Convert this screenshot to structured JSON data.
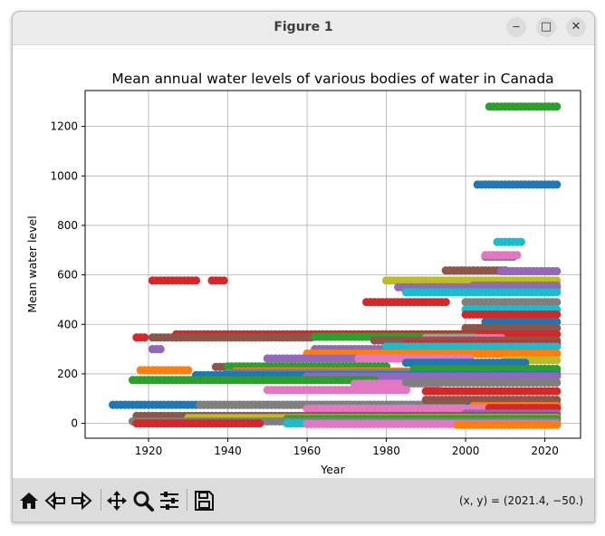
{
  "window": {
    "title": "Figure 1",
    "minimize_label": "‒",
    "maximize_label": "□",
    "close_label": "✕"
  },
  "toolbar": {
    "icons": [
      "home-icon",
      "back-icon",
      "forward-icon",
      "pan-icon",
      "zoom-icon",
      "configure-subplots-icon",
      "save-icon"
    ],
    "coords_text": "(x, y) = (2021.4, −50.)"
  },
  "chart_data": {
    "type": "scatter",
    "title": "Mean annual water levels of various bodies of water in Canada",
    "xlabel": "Year",
    "ylabel": "Mean water level",
    "xlim": [
      1904,
      2029
    ],
    "ylim": [
      -60,
      1345
    ],
    "xticks": [
      1920,
      1940,
      1960,
      1980,
      2000,
      2020
    ],
    "yticks": [
      0,
      200,
      400,
      600,
      800,
      1000,
      1200
    ],
    "grid": true,
    "legend": "none",
    "colors": [
      "#1f77b4",
      "#ff7f0e",
      "#2ca02c",
      "#d62728",
      "#9467bd",
      "#8c564b",
      "#e377c2",
      "#7f7f7f",
      "#bcbd22",
      "#17becf"
    ],
    "series": [
      {
        "color": "#2ca02c",
        "x": [
          2006,
          2023
        ],
        "y": [
          1280,
          1280
        ]
      },
      {
        "color": "#1f77b4",
        "x": [
          2003,
          2023
        ],
        "y": [
          965,
          965
        ]
      },
      {
        "color": "#17becf",
        "x": [
          2008,
          2014
        ],
        "y": [
          733,
          733
        ]
      },
      {
        "color": "#7f7f7f",
        "x": [
          2005,
          2012
        ],
        "y": [
          673,
          673
        ]
      },
      {
        "color": "#e377c2",
        "x": [
          2005,
          2013
        ],
        "y": [
          680,
          680
        ]
      },
      {
        "color": "#8c564b",
        "x": [
          1995,
          2010
        ],
        "y": [
          618,
          618
        ]
      },
      {
        "color": "#9467bd",
        "x": [
          2009,
          2023
        ],
        "y": [
          615,
          615
        ]
      },
      {
        "color": "#d62728",
        "x": [
          1921,
          1932
        ],
        "y": [
          577,
          577
        ]
      },
      {
        "color": "#d62728",
        "x": [
          1936,
          1939
        ],
        "y": [
          577,
          577
        ]
      },
      {
        "color": "#bcbd22",
        "x": [
          1980,
          2023
        ],
        "y": [
          577,
          577
        ]
      },
      {
        "color": "#7f7f7f",
        "x": [
          2002,
          2023
        ],
        "y": [
          557,
          557
        ]
      },
      {
        "color": "#9467bd",
        "x": [
          1983,
          2023
        ],
        "y": [
          550,
          550
        ]
      },
      {
        "color": "#17becf",
        "x": [
          1985,
          2023
        ],
        "y": [
          530,
          530
        ]
      },
      {
        "color": "#d62728",
        "x": [
          1975,
          1995
        ],
        "y": [
          490,
          490
        ]
      },
      {
        "color": "#7f7f7f",
        "x": [
          2000,
          2023
        ],
        "y": [
          490,
          490
        ]
      },
      {
        "color": "#17becf",
        "x": [
          2000,
          2023
        ],
        "y": [
          460,
          460
        ]
      },
      {
        "color": "#d62728",
        "x": [
          2000,
          2023
        ],
        "y": [
          440,
          440
        ]
      },
      {
        "color": "#1f77b4",
        "x": [
          2005,
          2023
        ],
        "y": [
          410,
          410
        ]
      },
      {
        "color": "#8c564b",
        "x": [
          2000,
          2023
        ],
        "y": [
          385,
          385
        ]
      },
      {
        "color": "#d62728",
        "x": [
          1917,
          1919
        ],
        "y": [
          347,
          347
        ]
      },
      {
        "color": "#8c564b",
        "x": [
          1921,
          1927
        ],
        "y": [
          347,
          347
        ]
      },
      {
        "color": "#d62728",
        "x": [
          1927,
          2023
        ],
        "y": [
          360,
          360
        ]
      },
      {
        "color": "#8c564b",
        "x": [
          1927,
          1961
        ],
        "y": [
          347,
          347
        ]
      },
      {
        "color": "#2ca02c",
        "x": [
          1962,
          2002
        ],
        "y": [
          350,
          350
        ]
      },
      {
        "color": "#e377c2",
        "x": [
          1990,
          2009
        ],
        "y": [
          345,
          345
        ]
      },
      {
        "color": "#8c564b",
        "x": [
          1977,
          2023
        ],
        "y": [
          335,
          335
        ]
      },
      {
        "color": "#9467bd",
        "x": [
          1921,
          1923
        ],
        "y": [
          300,
          300
        ]
      },
      {
        "color": "#9467bd",
        "x": [
          1962,
          2010
        ],
        "y": [
          300,
          300
        ]
      },
      {
        "color": "#d62728",
        "x": [
          1985,
          2023
        ],
        "y": [
          320,
          320
        ]
      },
      {
        "color": "#17becf",
        "x": [
          1980,
          2023
        ],
        "y": [
          310,
          310
        ]
      },
      {
        "color": "#d62728",
        "x": [
          2003,
          2023
        ],
        "y": [
          282,
          282
        ]
      },
      {
        "color": "#ff7f0e",
        "x": [
          1960,
          2023
        ],
        "y": [
          282,
          282
        ]
      },
      {
        "color": "#9467bd",
        "x": [
          1950,
          1975
        ],
        "y": [
          262,
          262
        ]
      },
      {
        "color": "#e377c2",
        "x": [
          1973,
          2001
        ],
        "y": [
          262,
          262
        ]
      },
      {
        "color": "#bcbd22",
        "x": [
          2010,
          2023
        ],
        "y": [
          255,
          255
        ]
      },
      {
        "color": "#1f77b4",
        "x": [
          1985,
          2015
        ],
        "y": [
          245,
          245
        ]
      },
      {
        "color": "#8c564b",
        "x": [
          1937,
          1955
        ],
        "y": [
          228,
          228
        ]
      },
      {
        "color": "#2ca02c",
        "x": [
          1940,
          1980
        ],
        "y": [
          230,
          230
        ]
      },
      {
        "color": "#ff7f0e",
        "x": [
          1918,
          1930
        ],
        "y": [
          215,
          215
        ]
      },
      {
        "color": "#ff7f0e",
        "x": [
          1942,
          1992
        ],
        "y": [
          210,
          210
        ]
      },
      {
        "color": "#7f7f7f",
        "x": [
          1940,
          2023
        ],
        "y": [
          205,
          205
        ]
      },
      {
        "color": "#2ca02c",
        "x": [
          1987,
          2023
        ],
        "y": [
          220,
          220
        ]
      },
      {
        "color": "#1f77b4",
        "x": [
          1932,
          2023
        ],
        "y": [
          195,
          195
        ]
      },
      {
        "color": "#9467bd",
        "x": [
          1960,
          2023
        ],
        "y": [
          190,
          190
        ]
      },
      {
        "color": "#2ca02c",
        "x": [
          1916,
          1977
        ],
        "y": [
          175,
          175
        ]
      },
      {
        "color": "#e377c2",
        "x": [
          1972,
          1993
        ],
        "y": [
          160,
          160
        ]
      },
      {
        "color": "#7f7f7f",
        "x": [
          1985,
          2023
        ],
        "y": [
          165,
          165
        ]
      },
      {
        "color": "#e377c2",
        "x": [
          1950,
          1985
        ],
        "y": [
          135,
          135
        ]
      },
      {
        "color": "#d62728",
        "x": [
          1990,
          2023
        ],
        "y": [
          130,
          130
        ]
      },
      {
        "color": "#1f77b4",
        "x": [
          1911,
          2023
        ],
        "y": [
          75,
          75
        ]
      },
      {
        "color": "#9467bd",
        "x": [
          1962,
          1973
        ],
        "y": [
          75,
          75
        ]
      },
      {
        "color": "#7f7f7f",
        "x": [
          1933,
          1999
        ],
        "y": [
          75,
          75
        ]
      },
      {
        "color": "#8c564b",
        "x": [
          1990,
          2023
        ],
        "y": [
          95,
          95
        ]
      },
      {
        "color": "#ff7f0e",
        "x": [
          2002,
          2023
        ],
        "y": [
          70,
          70
        ]
      },
      {
        "color": "#e377c2",
        "x": [
          1960,
          2023
        ],
        "y": [
          60,
          60
        ]
      },
      {
        "color": "#d62728",
        "x": [
          2006,
          2023
        ],
        "y": [
          62,
          62
        ]
      },
      {
        "color": "#9467bd",
        "x": [
          2000,
          2023
        ],
        "y": [
          40,
          40
        ]
      },
      {
        "color": "#8c564b",
        "x": [
          1917,
          2023
        ],
        "y": [
          30,
          30
        ]
      },
      {
        "color": "#bcbd22",
        "x": [
          1930,
          2023
        ],
        "y": [
          22,
          22
        ]
      },
      {
        "color": "#2ca02c",
        "x": [
          1955,
          2023
        ],
        "y": [
          18,
          18
        ]
      },
      {
        "color": "#7f7f7f",
        "x": [
          1916,
          2023
        ],
        "y": [
          8,
          8
        ]
      },
      {
        "color": "#17becf",
        "x": [
          1955,
          2023
        ],
        "y": [
          0,
          0
        ]
      },
      {
        "color": "#d62728",
        "x": [
          1917,
          1948
        ],
        "y": [
          0,
          0
        ]
      },
      {
        "color": "#e377c2",
        "x": [
          1960,
          2023
        ],
        "y": [
          -3,
          -3
        ]
      },
      {
        "color": "#ff7f0e",
        "x": [
          1998,
          2023
        ],
        "y": [
          -6,
          -6
        ]
      }
    ]
  }
}
